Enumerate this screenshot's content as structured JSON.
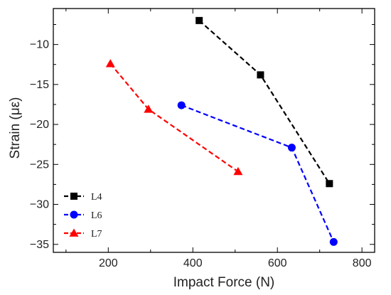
{
  "chart_data": {
    "type": "line",
    "xlabel": "Impact Force (N)",
    "ylabel": "Strain (με)",
    "xlim": [
      70,
      830
    ],
    "ylim": [
      -36,
      -5.5
    ],
    "xticks": [
      200,
      400,
      600,
      800
    ],
    "yticks": [
      -10,
      -15,
      -20,
      -25,
      -30,
      -35
    ],
    "grid": false,
    "legend_position": "bottom-left",
    "series": [
      {
        "name": "L4",
        "color": "#000000",
        "marker": "square",
        "line_style": "dashed",
        "x": [
          415,
          560,
          723
        ],
        "y": [
          -7.0,
          -13.8,
          -27.4
        ]
      },
      {
        "name": "L6",
        "color": "#0000ff",
        "marker": "circle",
        "line_style": "dashed",
        "x": [
          373,
          634,
          733
        ],
        "y": [
          -17.6,
          -22.9,
          -34.7
        ]
      },
      {
        "name": "L7",
        "color": "#ff0000",
        "marker": "triangle",
        "line_style": "dashed",
        "x": [
          205,
          295,
          507
        ],
        "y": [
          -12.4,
          -18.1,
          -25.9
        ]
      }
    ]
  }
}
